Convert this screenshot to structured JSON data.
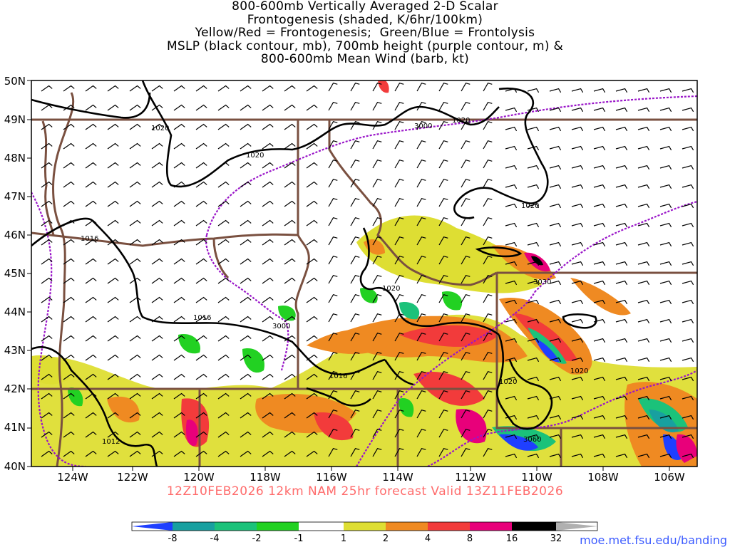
{
  "title": {
    "lines": [
      "800-600mb Vertically Averaged 2-D Scalar",
      "Frontogenesis (shaded, K/6hr/100km)",
      "Yellow/Red = Frontogenesis;  Green/Blue = Frontolysis",
      "MSLP (black contour, mb), 700mb height (purple contour, m) &",
      "800-600mb Mean Wind (barb, kt)"
    ]
  },
  "axes": {
    "latitudes": [
      "50N",
      "49N",
      "48N",
      "47N",
      "46N",
      "45N",
      "44N",
      "43N",
      "42N",
      "41N",
      "40N"
    ],
    "longitudes": [
      "124W",
      "122W",
      "120W",
      "118W",
      "116W",
      "114W",
      "112W",
      "110W",
      "108W",
      "106W"
    ]
  },
  "contour_labels": {
    "mslp": [
      "1020",
      "1020",
      "1020",
      "1020",
      "1016",
      "1016",
      "1020",
      "1016",
      "1020",
      "1020",
      "1012"
    ],
    "height": [
      "3000",
      "3000",
      "3030",
      "3060"
    ]
  },
  "caption": "12Z10FEB2026 12km NAM 25hr forecast Valid 13Z11FEB2026",
  "credit": "moe.met.fsu.edu/banding",
  "colorbar": {
    "labels": [
      "-8",
      "-4",
      "-2",
      "-1",
      "1",
      "2",
      "4",
      "8",
      "16",
      "32"
    ],
    "colors": [
      "#1f3fff",
      "#18a0a0",
      "#1bc27a",
      "#22d122",
      "#ffffff",
      "#dede33",
      "#ef8a22",
      "#f23b3b",
      "#e8007a",
      "#000000",
      "#b0b0b0"
    ]
  },
  "colors": {
    "mslp": "#000000",
    "height": "#9a16c9",
    "borders": "#7a5040",
    "barbs": "#000000"
  }
}
